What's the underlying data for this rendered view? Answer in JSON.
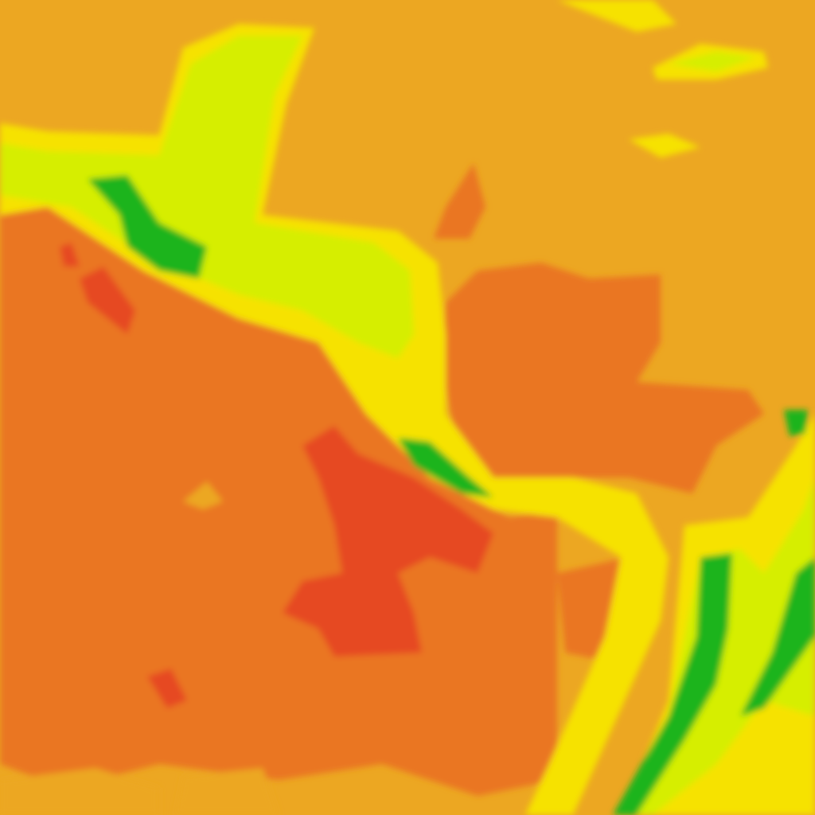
{
  "map": {
    "kind": "colored-raster-tile",
    "palette": {
      "base_orange": "#eca722",
      "dark_orange": "#ea7622",
      "red": "#e64a24",
      "yellow": "#f6e200",
      "yellow_green": "#d6ee00",
      "light_green": "#8fd40a",
      "green": "#1cb41e"
    }
  }
}
